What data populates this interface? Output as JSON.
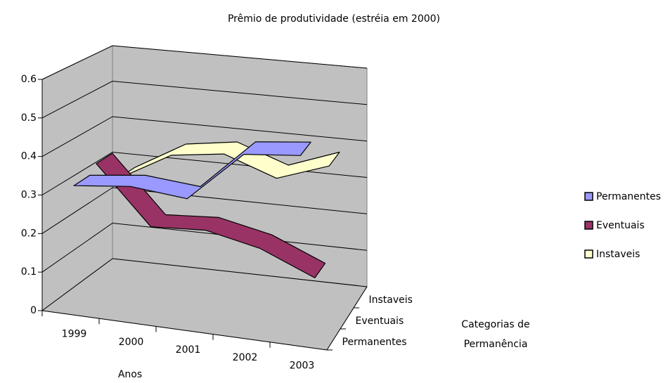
{
  "chart_data": {
    "type": "line",
    "title": "Prêmio de produtividade (estréia em 2000)",
    "x_label": "Anos",
    "depth_label": [
      "Categorias de",
      "Permanência"
    ],
    "categories": [
      "1999",
      "2000",
      "2001",
      "2002",
      "2003"
    ],
    "series": [
      {
        "name": "Permanentes",
        "color": "#9999ff",
        "values": [
          0.33,
          0.35,
          0.34,
          0.48,
          0.5
        ]
      },
      {
        "name": "Eventuais",
        "color": "#993366",
        "values": [
          0.35,
          0.2,
          0.21,
          0.18,
          0.12
        ]
      },
      {
        "name": "Instaveis",
        "color": "#ffffcc",
        "values": [
          0.27,
          0.35,
          0.37,
          0.32,
          0.37
        ]
      }
    ],
    "ylim": [
      0,
      0.6
    ],
    "yticks": [
      0,
      0.1,
      0.2,
      0.3,
      0.4,
      0.5,
      0.6
    ],
    "grid": true,
    "legend": "right"
  }
}
